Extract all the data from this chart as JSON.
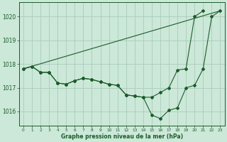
{
  "title": "Graphe pression niveau de la mer (hPa)",
  "background_color": "#cce8d8",
  "plot_bg_color": "#cce8d8",
  "grid_color": "#aaccbb",
  "line_color": "#1a5c2a",
  "ylim": [
    1015.4,
    1020.6
  ],
  "yticks": [
    1016,
    1017,
    1018,
    1019,
    1020
  ],
  "xlim": [
    -0.5,
    23.5
  ],
  "xticks": [
    0,
    1,
    2,
    3,
    4,
    5,
    6,
    7,
    8,
    9,
    10,
    11,
    12,
    13,
    14,
    15,
    16,
    17,
    18,
    19,
    20,
    21,
    22,
    23
  ],
  "series_upper": [
    1017.8,
    1017.9,
    1017.65,
    1017.65,
    1017.2,
    1017.15,
    1017.3,
    1017.4,
    1017.35,
    1017.25,
    1017.15,
    1017.1,
    1016.7,
    1016.65,
    1016.6,
    1016.6,
    1016.8,
    1017.0,
    1017.75,
    1017.8,
    1020.0,
    1020.25,
    null,
    null
  ],
  "series_lower": [
    1017.8,
    1017.9,
    1017.65,
    1017.65,
    1017.2,
    1017.15,
    1017.3,
    1017.4,
    1017.35,
    1017.25,
    1017.15,
    1017.1,
    1016.7,
    1016.65,
    1016.6,
    1015.85,
    1015.7,
    1016.05,
    1016.15,
    1017.0,
    1017.1,
    1017.8,
    1020.0,
    1020.25
  ],
  "trend_line": [
    [
      0,
      1017.8
    ],
    [
      23,
      1020.25
    ]
  ]
}
